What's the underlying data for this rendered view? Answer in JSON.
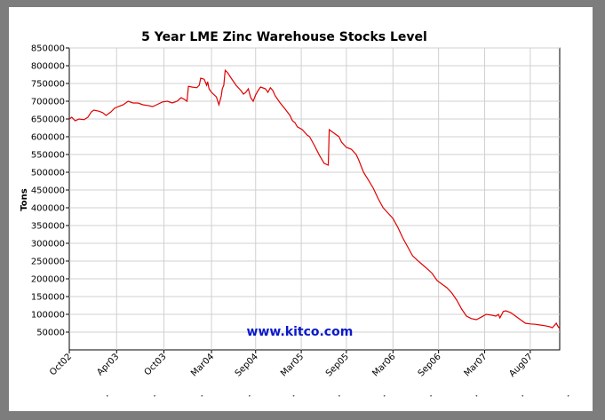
{
  "chart_data": {
    "type": "line",
    "title": "5 Year LME Zinc Warehouse Stocks Level",
    "xlabel": "",
    "ylabel": "Tons",
    "ylim": [
      0,
      850000
    ],
    "xlim": [
      0,
      1
    ],
    "grid": true,
    "watermark": "www.kitco.com",
    "line_color": "#e00000",
    "y_ticks": [
      {
        "value": 50000,
        "label": "50000"
      },
      {
        "value": 100000,
        "label": "100000"
      },
      {
        "value": 150000,
        "label": "150000"
      },
      {
        "value": 200000,
        "label": "200000"
      },
      {
        "value": 250000,
        "label": "250000"
      },
      {
        "value": 300000,
        "label": "300000"
      },
      {
        "value": 350000,
        "label": "350000"
      },
      {
        "value": 400000,
        "label": "400000"
      },
      {
        "value": 450000,
        "label": "450000"
      },
      {
        "value": 500000,
        "label": "500000"
      },
      {
        "value": 550000,
        "label": "550000"
      },
      {
        "value": 600000,
        "label": "600000"
      },
      {
        "value": 650000,
        "label": "650000"
      },
      {
        "value": 700000,
        "label": "700000"
      },
      {
        "value": 750000,
        "label": "750000"
      },
      {
        "value": 800000,
        "label": "800000"
      },
      {
        "value": 850000,
        "label": "850000"
      }
    ],
    "x_ticks": [
      {
        "pos": 0.0,
        "label": "Oct02"
      },
      {
        "pos": 0.0965,
        "label": "Apr03"
      },
      {
        "pos": 0.193,
        "label": "Oct03"
      },
      {
        "pos": 0.29,
        "label": "Mar04"
      },
      {
        "pos": 0.38,
        "label": "Sep04"
      },
      {
        "pos": 0.473,
        "label": "Mar05"
      },
      {
        "pos": 0.565,
        "label": "Sep05"
      },
      {
        "pos": 0.66,
        "label": "Mar06"
      },
      {
        "pos": 0.753,
        "label": "Sep06"
      },
      {
        "pos": 0.847,
        "label": "Mar07"
      },
      {
        "pos": 0.94,
        "label": "Aug07"
      }
    ],
    "series": [
      {
        "values": [
          [
            0.0,
            650000
          ],
          [
            0.005,
            655000
          ],
          [
            0.012,
            645000
          ],
          [
            0.02,
            650000
          ],
          [
            0.03,
            648000
          ],
          [
            0.038,
            655000
          ],
          [
            0.045,
            670000
          ],
          [
            0.05,
            675000
          ],
          [
            0.06,
            672000
          ],
          [
            0.068,
            668000
          ],
          [
            0.075,
            660000
          ],
          [
            0.085,
            670000
          ],
          [
            0.092,
            680000
          ],
          [
            0.1,
            685000
          ],
          [
            0.11,
            690000
          ],
          [
            0.12,
            700000
          ],
          [
            0.13,
            695000
          ],
          [
            0.14,
            695000
          ],
          [
            0.15,
            690000
          ],
          [
            0.16,
            688000
          ],
          [
            0.17,
            685000
          ],
          [
            0.178,
            690000
          ],
          [
            0.19,
            698000
          ],
          [
            0.2,
            700000
          ],
          [
            0.21,
            695000
          ],
          [
            0.22,
            700000
          ],
          [
            0.228,
            710000
          ],
          [
            0.235,
            705000
          ],
          [
            0.24,
            700000
          ],
          [
            0.243,
            742000
          ],
          [
            0.25,
            740000
          ],
          [
            0.26,
            738000
          ],
          [
            0.265,
            745000
          ],
          [
            0.268,
            765000
          ],
          [
            0.275,
            762000
          ],
          [
            0.28,
            745000
          ],
          [
            0.282,
            755000
          ],
          [
            0.285,
            735000
          ],
          [
            0.29,
            725000
          ],
          [
            0.3,
            712000
          ],
          [
            0.305,
            690000
          ],
          [
            0.31,
            715000
          ],
          [
            0.312,
            735000
          ],
          [
            0.315,
            745000
          ],
          [
            0.318,
            787000
          ],
          [
            0.323,
            780000
          ],
          [
            0.33,
            765000
          ],
          [
            0.34,
            745000
          ],
          [
            0.35,
            730000
          ],
          [
            0.355,
            720000
          ],
          [
            0.36,
            725000
          ],
          [
            0.365,
            735000
          ],
          [
            0.37,
            710000
          ],
          [
            0.375,
            700000
          ],
          [
            0.38,
            718000
          ],
          [
            0.385,
            730000
          ],
          [
            0.39,
            740000
          ],
          [
            0.4,
            735000
          ],
          [
            0.405,
            725000
          ],
          [
            0.41,
            738000
          ],
          [
            0.415,
            730000
          ],
          [
            0.42,
            715000
          ],
          [
            0.43,
            695000
          ],
          [
            0.44,
            678000
          ],
          [
            0.45,
            660000
          ],
          [
            0.455,
            645000
          ],
          [
            0.46,
            640000
          ],
          [
            0.465,
            628000
          ],
          [
            0.475,
            620000
          ],
          [
            0.485,
            605000
          ],
          [
            0.49,
            600000
          ],
          [
            0.5,
            575000
          ],
          [
            0.51,
            548000
          ],
          [
            0.52,
            525000
          ],
          [
            0.528,
            520000
          ],
          [
            0.53,
            620000
          ],
          [
            0.535,
            615000
          ],
          [
            0.545,
            605000
          ],
          [
            0.55,
            600000
          ],
          [
            0.555,
            585000
          ],
          [
            0.565,
            570000
          ],
          [
            0.575,
            565000
          ],
          [
            0.585,
            550000
          ],
          [
            0.59,
            535000
          ],
          [
            0.6,
            500000
          ],
          [
            0.61,
            478000
          ],
          [
            0.62,
            455000
          ],
          [
            0.63,
            425000
          ],
          [
            0.64,
            400000
          ],
          [
            0.65,
            385000
          ],
          [
            0.66,
            370000
          ],
          [
            0.67,
            345000
          ],
          [
            0.68,
            315000
          ],
          [
            0.69,
            290000
          ],
          [
            0.7,
            265000
          ],
          [
            0.71,
            252000
          ],
          [
            0.72,
            240000
          ],
          [
            0.73,
            228000
          ],
          [
            0.74,
            215000
          ],
          [
            0.75,
            195000
          ],
          [
            0.76,
            185000
          ],
          [
            0.77,
            175000
          ],
          [
            0.78,
            160000
          ],
          [
            0.79,
            140000
          ],
          [
            0.8,
            115000
          ],
          [
            0.81,
            95000
          ],
          [
            0.82,
            88000
          ],
          [
            0.83,
            85000
          ],
          [
            0.84,
            92000
          ],
          [
            0.85,
            100000
          ],
          [
            0.86,
            98000
          ],
          [
            0.87,
            95000
          ],
          [
            0.875,
            100000
          ],
          [
            0.878,
            90000
          ],
          [
            0.885,
            108000
          ],
          [
            0.89,
            110000
          ],
          [
            0.9,
            105000
          ],
          [
            0.91,
            95000
          ],
          [
            0.92,
            85000
          ],
          [
            0.93,
            75000
          ],
          [
            0.94,
            73000
          ],
          [
            0.95,
            72000
          ],
          [
            0.96,
            70000
          ],
          [
            0.97,
            68000
          ],
          [
            0.98,
            65000
          ],
          [
            0.985,
            62000
          ],
          [
            0.99,
            70000
          ],
          [
            0.993,
            75000
          ],
          [
            0.997,
            65000
          ],
          [
            1.0,
            60000
          ]
        ]
      }
    ]
  }
}
